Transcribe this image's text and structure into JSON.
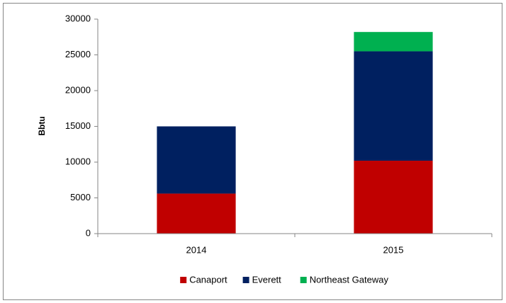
{
  "chart_data": {
    "type": "stacked_bar",
    "y_label": "Bbtu",
    "categories": [
      "2014",
      "2015"
    ],
    "series": [
      {
        "name": "Canaport",
        "color": "#c00000",
        "values": [
          5600,
          10200
        ]
      },
      {
        "name": "Everett",
        "color": "#002060",
        "values": [
          9400,
          15300
        ]
      },
      {
        "name": "Northeast Gateway",
        "color": "#00b050",
        "values": [
          0,
          2700
        ]
      }
    ],
    "ylim": [
      0,
      30000
    ],
    "yticks": [
      0,
      5000,
      10000,
      15000,
      20000,
      25000,
      30000
    ],
    "grid": false,
    "legend": "bottom"
  }
}
